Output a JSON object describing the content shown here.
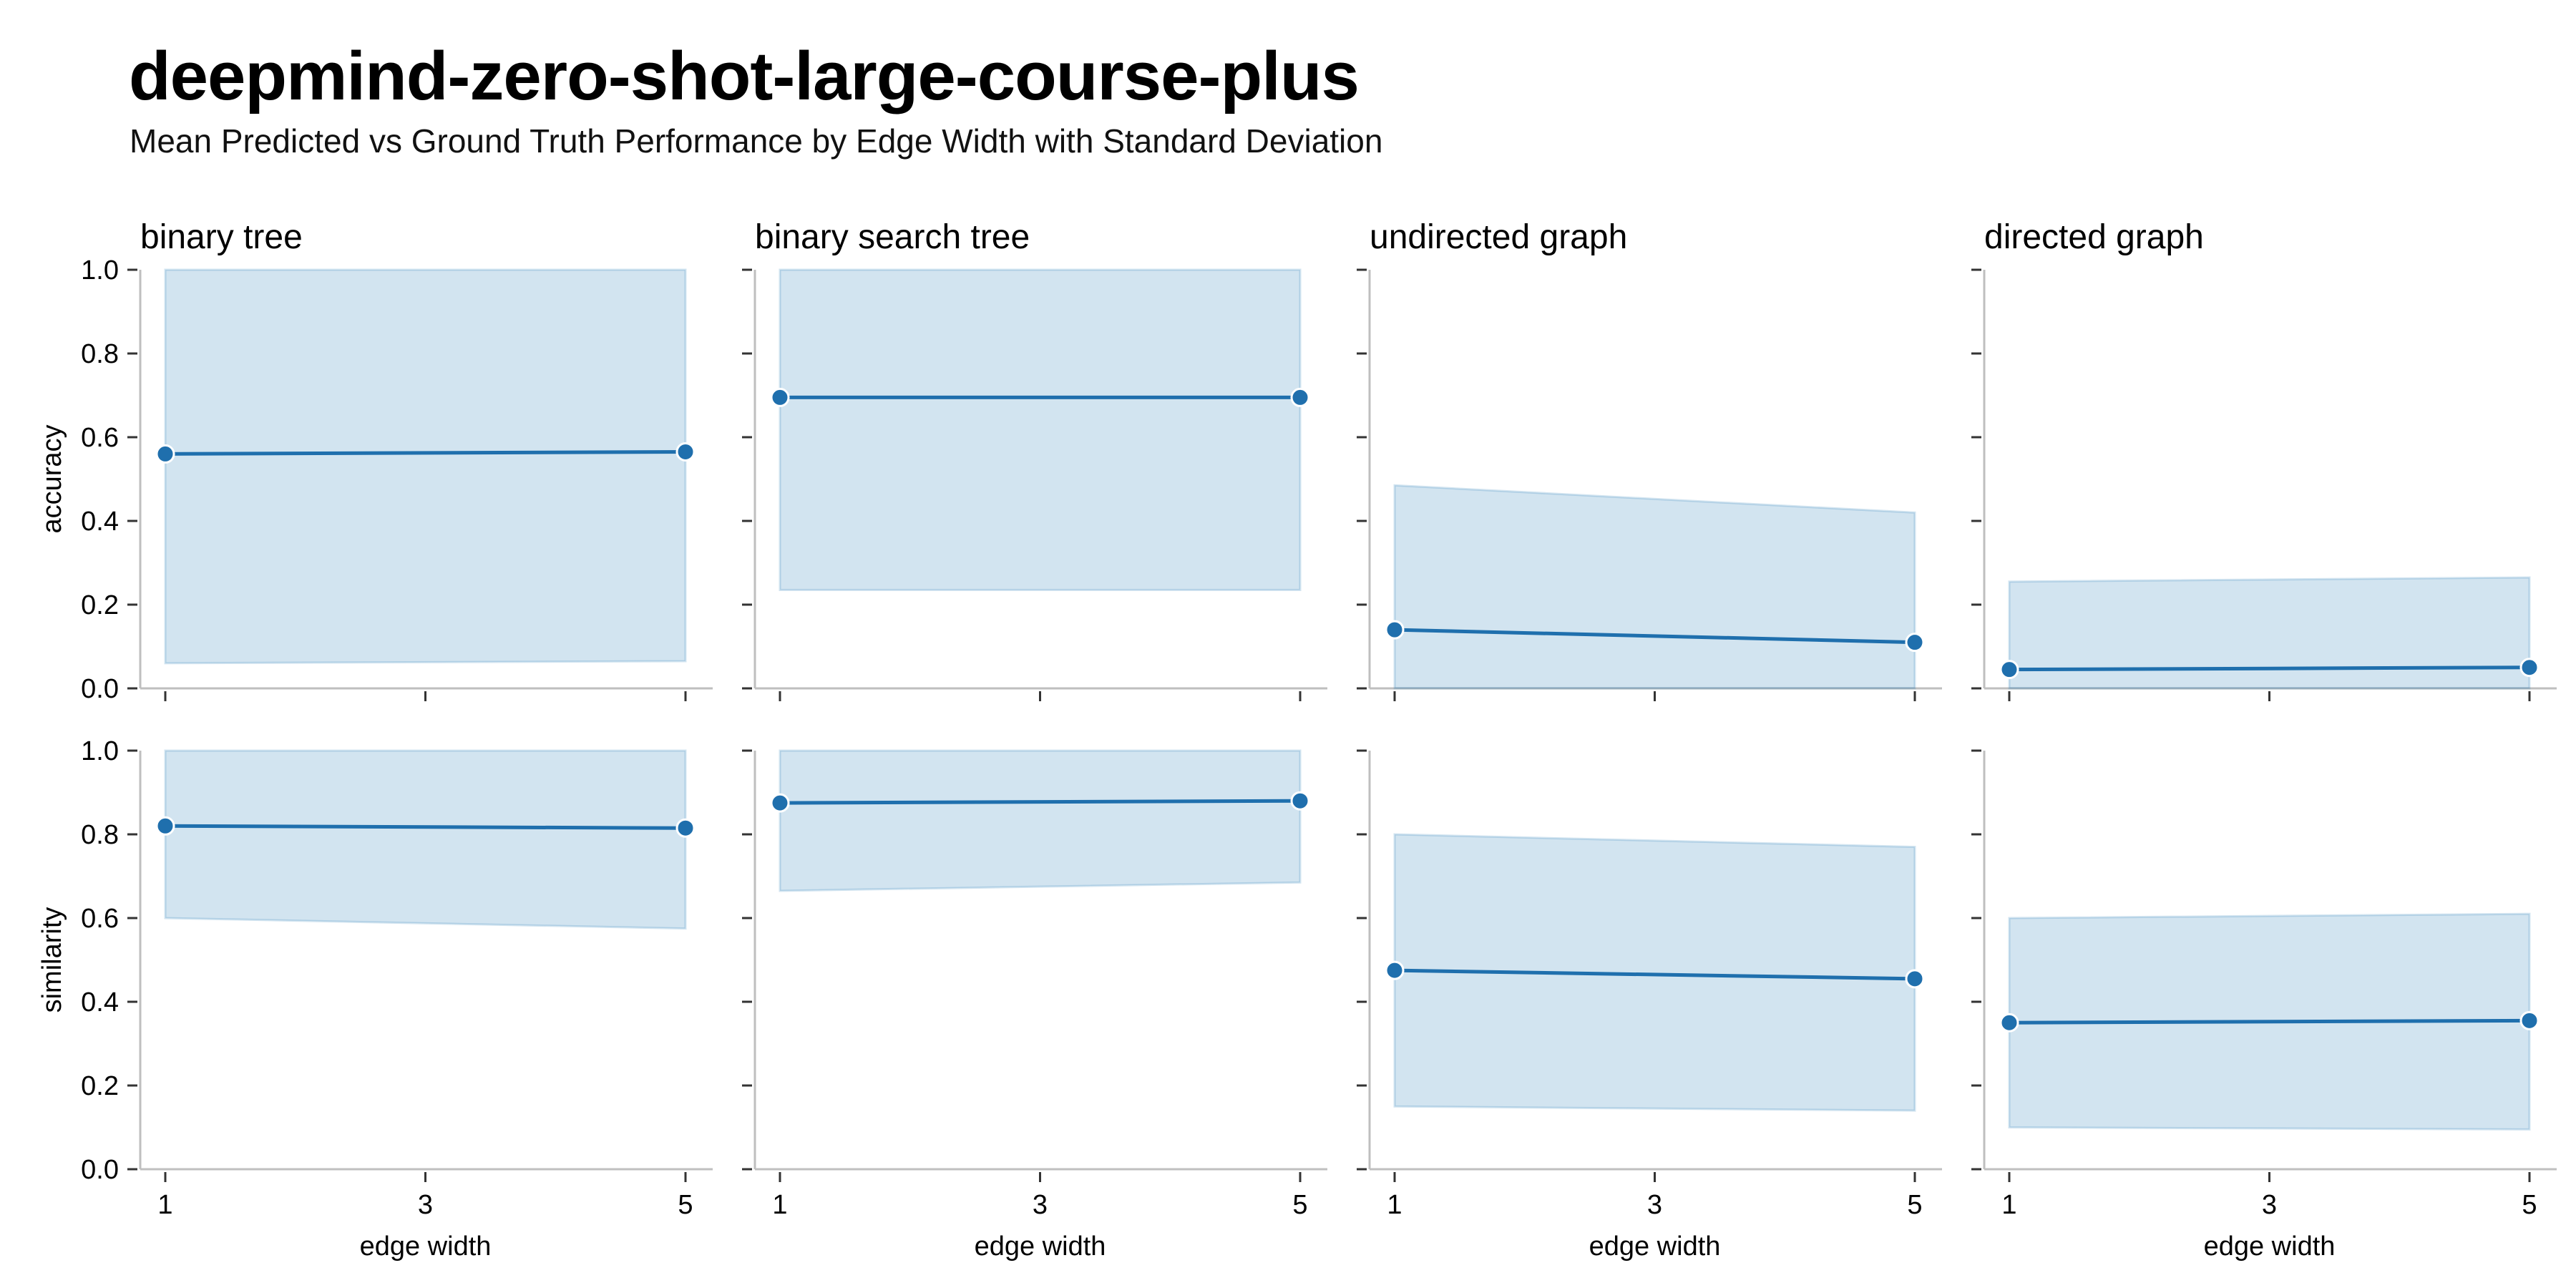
{
  "title": "deepmind-zero-shot-large-course-plus",
  "subtitle": "Mean Predicted vs Ground Truth Performance by Edge Width with Standard Deviation",
  "colors": {
    "line": "#1f6fad",
    "band": "#1f77b4",
    "axis": "#bfbfbf"
  },
  "chart_data": {
    "type": "line",
    "layout": "facet-grid",
    "columns": [
      "binary tree",
      "binary search tree",
      "undirected graph",
      "directed graph"
    ],
    "rows": [
      "accuracy",
      "similarity"
    ],
    "xlabel": "edge width",
    "x_ticks": [
      1,
      3,
      5
    ],
    "xlim": [
      1,
      5
    ],
    "y_ticks": [
      0.0,
      0.2,
      0.4,
      0.6,
      0.8,
      1.0
    ],
    "y_tick_labels": [
      "0.0",
      "0.2",
      "0.4",
      "0.6",
      "0.8",
      "1.0"
    ],
    "ylim": [
      0,
      1
    ],
    "grid": false,
    "panels": [
      {
        "row": "accuracy",
        "col": "binary tree",
        "x": [
          1,
          5
        ],
        "mean": [
          0.56,
          0.565
        ],
        "lower": [
          0.06,
          0.065
        ],
        "upper": [
          1.0,
          1.0
        ]
      },
      {
        "row": "accuracy",
        "col": "binary search tree",
        "x": [
          1,
          5
        ],
        "mean": [
          0.695,
          0.695
        ],
        "lower": [
          0.235,
          0.235
        ],
        "upper": [
          1.0,
          1.0
        ]
      },
      {
        "row": "accuracy",
        "col": "undirected graph",
        "x": [
          1,
          5
        ],
        "mean": [
          0.14,
          0.11
        ],
        "lower": [
          0.0,
          0.0
        ],
        "upper": [
          0.485,
          0.42
        ]
      },
      {
        "row": "accuracy",
        "col": "directed graph",
        "x": [
          1,
          5
        ],
        "mean": [
          0.045,
          0.05
        ],
        "lower": [
          0.0,
          0.0
        ],
        "upper": [
          0.255,
          0.265
        ]
      },
      {
        "row": "similarity",
        "col": "binary tree",
        "x": [
          1,
          5
        ],
        "mean": [
          0.82,
          0.815
        ],
        "lower": [
          0.6,
          0.575
        ],
        "upper": [
          1.0,
          1.0
        ]
      },
      {
        "row": "similarity",
        "col": "binary search tree",
        "x": [
          1,
          5
        ],
        "mean": [
          0.875,
          0.88
        ],
        "lower": [
          0.665,
          0.685
        ],
        "upper": [
          1.0,
          1.0
        ]
      },
      {
        "row": "similarity",
        "col": "undirected graph",
        "x": [
          1,
          5
        ],
        "mean": [
          0.475,
          0.455
        ],
        "lower": [
          0.15,
          0.14
        ],
        "upper": [
          0.8,
          0.77
        ]
      },
      {
        "row": "similarity",
        "col": "directed graph",
        "x": [
          1,
          5
        ],
        "mean": [
          0.35,
          0.355
        ],
        "lower": [
          0.1,
          0.095
        ],
        "upper": [
          0.6,
          0.61
        ]
      }
    ]
  }
}
